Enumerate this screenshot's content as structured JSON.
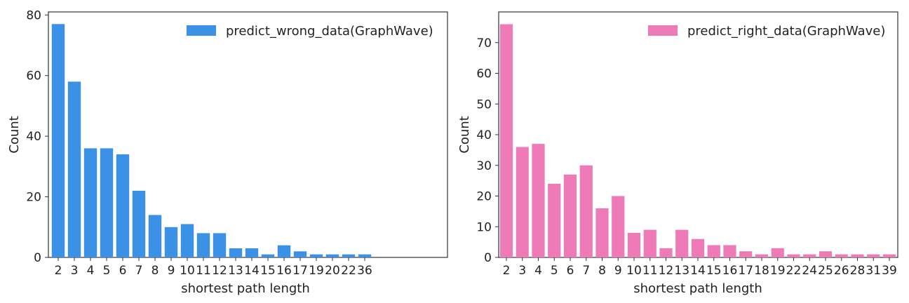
{
  "chart_data": [
    {
      "type": "bar",
      "categories": [
        "2",
        "3",
        "4",
        "5",
        "6",
        "7",
        "8",
        "9",
        "10",
        "11",
        "12",
        "13",
        "14",
        "15",
        "16",
        "17",
        "19",
        "20",
        "22",
        "36"
      ],
      "values": [
        77,
        58,
        36,
        36,
        34,
        22,
        14,
        10,
        11,
        8,
        8,
        3,
        3,
        1,
        4,
        2,
        1,
        1,
        1,
        1
      ],
      "xlabel": "shortest path length",
      "ylabel": "Count",
      "ylim": [
        0,
        81
      ],
      "yticks": [
        0,
        20,
        40,
        60,
        80
      ],
      "legend": "predict_wrong_data(GraphWave)",
      "legend_position": "top-right",
      "color": "#3a91e6",
      "grid": false
    },
    {
      "type": "bar",
      "categories": [
        "2",
        "3",
        "4",
        "5",
        "6",
        "7",
        "8",
        "9",
        "10",
        "11",
        "12",
        "13",
        "14",
        "15",
        "16",
        "17",
        "18",
        "19",
        "22",
        "24",
        "25",
        "26",
        "28",
        "31",
        "39"
      ],
      "values": [
        76,
        36,
        37,
        24,
        27,
        30,
        16,
        20,
        8,
        9,
        3,
        9,
        6,
        4,
        4,
        2,
        1,
        3,
        1,
        1,
        2,
        1,
        1,
        1,
        1
      ],
      "xlabel": "shortest path length",
      "ylabel": "Count",
      "ylim": [
        0,
        80
      ],
      "yticks": [
        0,
        10,
        20,
        30,
        40,
        50,
        60,
        70
      ],
      "legend": "predict_right_data(GraphWave)",
      "legend_position": "top-right",
      "color": "#ee7bb8",
      "grid": false
    }
  ]
}
